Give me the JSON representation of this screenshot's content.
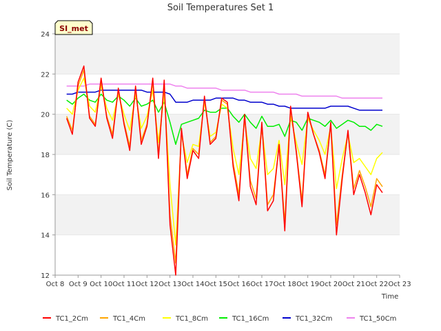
{
  "chart_data": {
    "type": "line",
    "title": "Soil Temperatures Set 1",
    "xlabel": "Time",
    "ylabel": "Soil Temperature (C)",
    "ylim": [
      12,
      24
    ],
    "xlim": [
      "Oct 8",
      "Oct 23"
    ],
    "yticks": [
      12,
      14,
      16,
      18,
      20,
      22,
      24
    ],
    "xticks": [
      "Oct 8",
      "Oct 9",
      "Oct 10",
      "Oct 11",
      "Oct 12",
      "Oct 13",
      "Oct 14",
      "Oct 15",
      "Oct 16",
      "Oct 17",
      "Oct 18",
      "Oct 19",
      "Oct 20",
      "Oct 21",
      "Oct 22",
      "Oct 23"
    ],
    "grid": "alternating horizontal bands",
    "legend_position": "bottom",
    "annotation": "SI_met",
    "x": [
      "Oct 8 12:00",
      "Oct 8 18:00",
      "Oct 9 00:00",
      "Oct 9 06:00",
      "Oct 9 12:00",
      "Oct 9 18:00",
      "Oct 10 00:00",
      "Oct 10 06:00",
      "Oct 10 12:00",
      "Oct 10 18:00",
      "Oct 11 00:00",
      "Oct 11 06:00",
      "Oct 11 12:00",
      "Oct 11 18:00",
      "Oct 12 00:00",
      "Oct 12 06:00",
      "Oct 12 12:00",
      "Oct 12 18:00",
      "Oct 13 00:00",
      "Oct 13 06:00",
      "Oct 13 12:00",
      "Oct 13 18:00",
      "Oct 14 00:00",
      "Oct 14 06:00",
      "Oct 14 12:00",
      "Oct 14 18:00",
      "Oct 15 00:00",
      "Oct 15 06:00",
      "Oct 15 12:00",
      "Oct 15 18:00",
      "Oct 16 00:00",
      "Oct 16 06:00",
      "Oct 16 12:00",
      "Oct 16 18:00",
      "Oct 17 00:00",
      "Oct 17 06:00",
      "Oct 17 12:00",
      "Oct 17 18:00",
      "Oct 18 00:00",
      "Oct 18 06:00",
      "Oct 18 12:00",
      "Oct 18 18:00",
      "Oct 19 00:00",
      "Oct 19 06:00",
      "Oct 19 12:00",
      "Oct 19 18:00",
      "Oct 20 00:00",
      "Oct 20 06:00",
      "Oct 20 12:00",
      "Oct 20 18:00",
      "Oct 21 00:00",
      "Oct 21 06:00",
      "Oct 21 12:00",
      "Oct 21 18:00",
      "Oct 22 00:00",
      "Oct 22 06:00"
    ],
    "series": [
      {
        "name": "TC1_2Cm",
        "color": "#ff0000",
        "values": [
          19.8,
          19.0,
          21.6,
          22.4,
          19.8,
          19.4,
          21.8,
          19.8,
          18.8,
          21.3,
          19.5,
          18.2,
          21.4,
          18.5,
          19.4,
          21.8,
          17.8,
          21.7,
          14.5,
          12.0,
          19.3,
          16.8,
          18.2,
          17.8,
          20.9,
          18.5,
          18.8,
          20.8,
          20.6,
          17.4,
          15.7,
          20.0,
          16.4,
          15.5,
          19.6,
          15.2,
          15.7,
          18.5,
          14.2,
          20.4,
          18.1,
          15.4,
          20.1,
          19.0,
          18.1,
          16.8,
          19.6,
          14.0,
          16.8,
          19.2,
          16.0,
          17.0,
          16.1,
          15.0,
          16.5,
          16.1
        ]
      },
      {
        "name": "TC1_4Cm",
        "color": "#ffa500",
        "values": [
          19.9,
          19.2,
          21.4,
          22.2,
          19.9,
          19.5,
          21.6,
          19.9,
          19.0,
          21.2,
          19.6,
          18.4,
          21.3,
          18.7,
          19.5,
          21.6,
          18.0,
          21.5,
          15.0,
          12.6,
          19.2,
          17.0,
          18.3,
          18.0,
          20.8,
          18.6,
          18.9,
          20.7,
          20.5,
          17.6,
          16.0,
          19.9,
          16.7,
          15.8,
          19.5,
          15.5,
          16.0,
          18.4,
          14.6,
          20.3,
          18.2,
          15.7,
          20.0,
          19.0,
          18.2,
          17.0,
          19.5,
          14.5,
          17.0,
          19.1,
          16.3,
          17.2,
          16.4,
          15.4,
          16.8,
          16.4
        ]
      },
      {
        "name": "TC1_8Cm",
        "color": "#ffff00",
        "values": [
          20.3,
          20.0,
          21.2,
          21.8,
          20.4,
          20.1,
          21.4,
          20.3,
          19.7,
          21.0,
          20.0,
          19.2,
          21.0,
          19.3,
          19.9,
          21.2,
          18.6,
          21.0,
          16.5,
          13.5,
          19.0,
          17.6,
          18.5,
          18.4,
          20.6,
          18.9,
          19.1,
          20.5,
          20.3,
          18.3,
          17.0,
          19.7,
          17.8,
          17.3,
          19.3,
          17.0,
          17.3,
          18.7,
          16.5,
          19.9,
          18.6,
          17.5,
          19.8,
          19.2,
          18.7,
          18.0,
          19.4,
          16.3,
          17.8,
          19.0,
          17.6,
          17.8,
          17.4,
          17.0,
          17.8,
          18.1
        ]
      },
      {
        "name": "TC1_16Cm",
        "color": "#00ee00",
        "values": [
          20.7,
          20.5,
          20.8,
          21.0,
          20.7,
          20.6,
          21.0,
          20.7,
          20.6,
          20.9,
          20.7,
          20.4,
          20.8,
          20.4,
          20.5,
          20.7,
          20.1,
          20.6,
          19.6,
          18.5,
          19.5,
          19.6,
          19.7,
          19.8,
          20.2,
          20.1,
          20.1,
          20.3,
          20.3,
          19.9,
          19.6,
          20.0,
          19.6,
          19.3,
          19.9,
          19.4,
          19.4,
          19.5,
          18.9,
          19.7,
          19.6,
          19.2,
          19.8,
          19.7,
          19.6,
          19.4,
          19.7,
          19.3,
          19.5,
          19.7,
          19.6,
          19.4,
          19.4,
          19.2,
          19.5,
          19.4
        ]
      },
      {
        "name": "TC1_32Cm",
        "color": "#0000cd",
        "values": [
          21.0,
          21.0,
          21.1,
          21.1,
          21.1,
          21.1,
          21.2,
          21.2,
          21.2,
          21.2,
          21.2,
          21.2,
          21.2,
          21.2,
          21.1,
          21.1,
          21.1,
          21.1,
          21.0,
          20.6,
          20.6,
          20.6,
          20.7,
          20.7,
          20.7,
          20.7,
          20.8,
          20.8,
          20.8,
          20.8,
          20.7,
          20.7,
          20.6,
          20.6,
          20.6,
          20.5,
          20.5,
          20.4,
          20.4,
          20.3,
          20.3,
          20.3,
          20.3,
          20.3,
          20.3,
          20.3,
          20.4,
          20.4,
          20.4,
          20.4,
          20.3,
          20.2,
          20.2,
          20.2,
          20.2,
          20.2
        ]
      },
      {
        "name": "TC1_50Cm",
        "color": "#ee82ee",
        "values": [
          21.4,
          21.4,
          21.4,
          21.4,
          21.5,
          21.5,
          21.5,
          21.5,
          21.5,
          21.5,
          21.5,
          21.5,
          21.5,
          21.5,
          21.5,
          21.5,
          21.5,
          21.5,
          21.5,
          21.4,
          21.4,
          21.3,
          21.3,
          21.3,
          21.3,
          21.3,
          21.3,
          21.2,
          21.2,
          21.2,
          21.2,
          21.2,
          21.1,
          21.1,
          21.1,
          21.1,
          21.1,
          21.0,
          21.0,
          21.0,
          21.0,
          20.9,
          20.9,
          20.9,
          20.9,
          20.9,
          20.9,
          20.9,
          20.8,
          20.8,
          20.8,
          20.8,
          20.8,
          20.8,
          20.8,
          20.8
        ]
      }
    ]
  }
}
